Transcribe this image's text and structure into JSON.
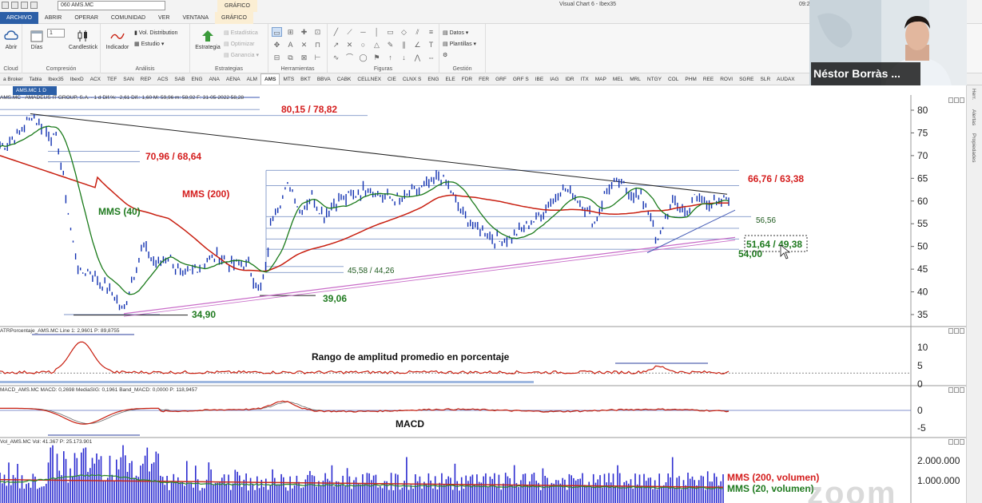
{
  "title_bar": {
    "symbol_combo": "060 AMS.MC",
    "grafico_tab": "GRÁFICO",
    "app_title": "Visual Chart 6 - Ibex35",
    "clock": "09:2"
  },
  "menu": [
    "ARCHIVO",
    "ABRIR",
    "OPERAR",
    "COMUNIDAD",
    "VER",
    "VENTANA",
    "GRÁFICO"
  ],
  "ribbon": {
    "groups": {
      "compresion": "Compresión",
      "analisis": "Análisis",
      "herramientas": "Herramientas",
      "estrategias": "Estrategias",
      "figuras": "Figuras",
      "gestion": "Gestión",
      "cloud": "Cloud"
    },
    "buttons": {
      "abrir": "Abrir",
      "dias": "Días",
      "period_value": "1",
      "candlestick": "Candlestick",
      "indicador": "Indicador",
      "vol_distribution": "Vol. Distribution",
      "estudio": "Estudio",
      "estrategia": "Estrategia",
      "estadistica": "Estadística",
      "optimizar": "Optimizar",
      "ganancia": "Ganancia",
      "datos": "Datos",
      "plantillas": "Plantillas"
    }
  },
  "symbols": [
    "a Broker",
    "Tabla",
    "Ibex35",
    "IbexD",
    "ACX",
    "TEF",
    "SAN",
    "REP",
    "ACS",
    "SAB",
    "ENG",
    "ANA",
    "AENA",
    "ALM",
    "AMS",
    "MTS",
    "BKT",
    "BBVA",
    "CABK",
    "CELLNEX",
    "CIE",
    "CLNX S",
    "ENG",
    "ELE",
    "FDR",
    "FER",
    "GRF",
    "GRF S",
    "IBE",
    "IAG",
    "IDR",
    "ITX",
    "MAP",
    "MEL",
    "MRL",
    "NTGY",
    "COL",
    "PHM",
    "REE",
    "ROVI",
    "SGRE",
    "SLR",
    "AUDAX"
  ],
  "doc_tab": "AMS.MC 1 D",
  "sidebar": {
    "alertas": "Alertas",
    "propiedades": "Propiedades",
    "top_label": "Herr."
  },
  "video": {
    "name": "Néstor Borràs ..."
  },
  "watermark": "zoom",
  "panes": {
    "price": {
      "info": "AMS.MC - AMADEUS IT GROUP, S.A. - 1 d  Dif.%: -2,61  Dif.: 1,60  M: 59,96  m: 58,92  F: 31-05-2022  58,28",
      "axis_ticks": [
        "80",
        "75",
        "70",
        "65",
        "60",
        "55",
        "50",
        "45",
        "40",
        "35"
      ],
      "annotations": {
        "range_top": "80,15 / 78,82",
        "range_mid": "70,96 / 68,64",
        "range_right": "66,76 / 63,38",
        "mms200": "MMS (200)",
        "mms40": "MMS (40)",
        "level_5656": "56,56",
        "level_54": "54,00",
        "range_box": "51,64 / 49,38",
        "range_low": "45,58 / 44,26",
        "level_3906": "39,06",
        "level_3490": "34,90"
      }
    },
    "atr": {
      "info": "ATRPorcentaje_AMS.MC  Line 1: 2,9601  P: 89,8755",
      "axis_ticks": [
        "10",
        "5",
        "0"
      ],
      "label": "Rango de amplitud promedio en porcentaje"
    },
    "macd": {
      "info": "MACD_AMS.MC  MACD: 0,2698  MediaSIG: 0,1961  Band_MACD: 0,0000  P: 118,9457",
      "axis_ticks": [
        "0",
        "-5"
      ],
      "label": "MACD"
    },
    "volume": {
      "info": "Vol_AMS.MC  Vol: 41.367  P: 25.173.901",
      "axis_ticks": [
        "2.000.000",
        "1.000.000"
      ],
      "label_mms200": "MMS (200, volumen)",
      "label_mms20": "MMS (20, volumen)"
    }
  },
  "colors": {
    "accent": "#2c5fa7",
    "price": "#1030b0",
    "mms200": "#c81e0f",
    "mms40": "#1a7a1a",
    "atr": "#c81e0f",
    "annotation_red": "#d41d1d",
    "annotation_green": "#1f7a1f"
  }
}
